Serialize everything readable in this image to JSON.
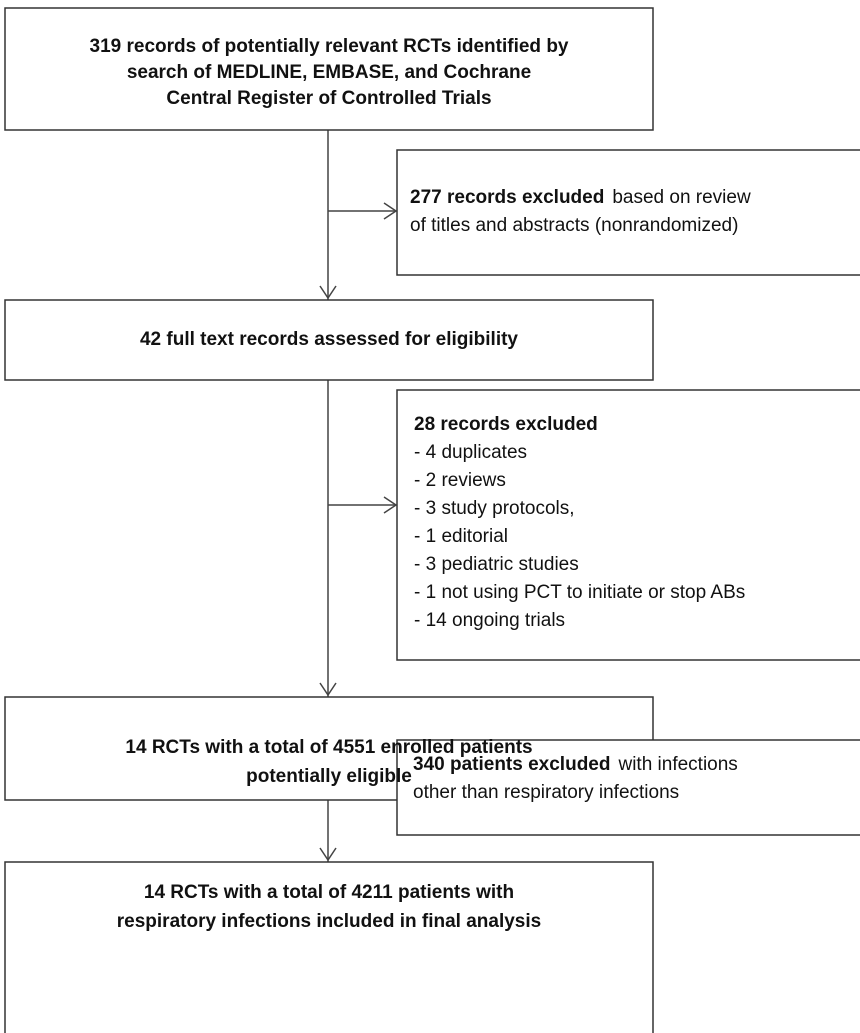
{
  "nodes": [
    {
      "lines": [
        "319 records of potentially relevant RCTs identified by",
        "search of MEDLINE, EMBASE, and Cochrane",
        "Central Register of Controlled Trials"
      ]
    },
    {
      "lines": [
        "42 full text records assessed for eligibility"
      ]
    },
    {
      "lines": [
        "14 RCTs with a total of 4551 enrolled patients",
        "potentially eligible"
      ]
    },
    {
      "lines": [
        "14 RCTs with a total of 4211 patients with",
        "respiratory infections included in final analysis"
      ]
    }
  ],
  "exclusions": [
    {
      "heading": "277  records excluded",
      "lines": [
        "based on review",
        "of titles and abstracts (nonrandomized)"
      ]
    },
    {
      "heading": "28 records excluded",
      "lines": [
        "- 4 duplicates",
        "- 2 reviews",
        "- 3 study protocols,",
        "- 1 editorial",
        "- 3 pediatric studies",
        "- 1 not using PCT to initiate or stop ABs",
        "- 14 ongoing trials"
      ]
    },
    {
      "heading": "340 patients excluded",
      "lines": [
        "with infections",
        "other than respiratory infections"
      ]
    }
  ]
}
